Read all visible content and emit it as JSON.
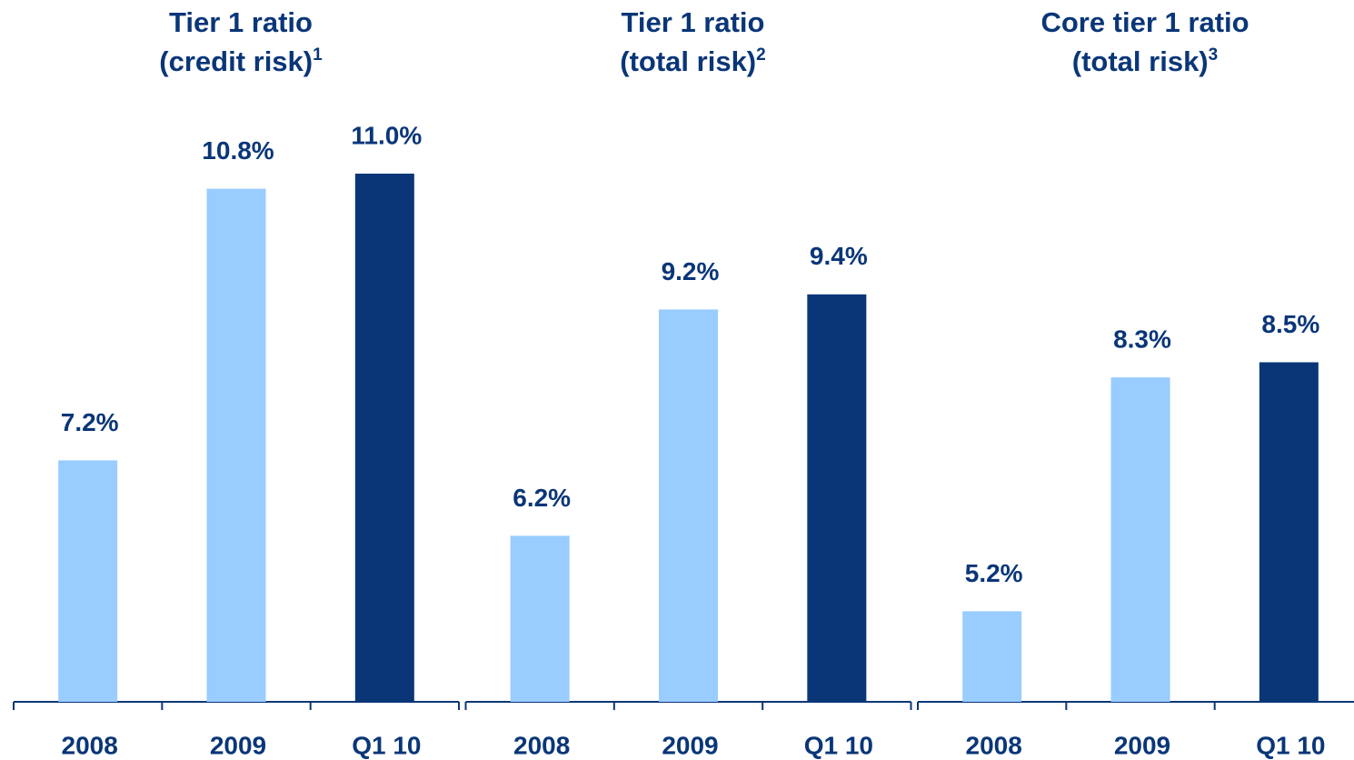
{
  "chart_data": [
    {
      "type": "bar",
      "title": "Tier 1 ratio",
      "subtitle": "(credit risk)",
      "footnote_marker": "1",
      "categories": [
        "2008",
        "2009",
        "Q1 10"
      ],
      "values": [
        7.2,
        10.8,
        11.0
      ],
      "value_labels": [
        "7.2%",
        "10.8%",
        "11.0%"
      ],
      "colors": [
        "#99ccff",
        "#99ccff",
        "#0a3678"
      ],
      "ylim": [
        4,
        12
      ]
    },
    {
      "type": "bar",
      "title": "Tier 1 ratio",
      "subtitle": "(total risk)",
      "footnote_marker": "2",
      "categories": [
        "2008",
        "2009",
        "Q1 10"
      ],
      "values": [
        6.2,
        9.2,
        9.4
      ],
      "value_labels": [
        "6.2%",
        "9.2%",
        "9.4%"
      ],
      "colors": [
        "#99ccff",
        "#99ccff",
        "#0a3678"
      ],
      "ylim": [
        4,
        12
      ]
    },
    {
      "type": "bar",
      "title": "Core tier 1 ratio",
      "subtitle": "(total risk)",
      "footnote_marker": "3",
      "categories": [
        "2008",
        "2009",
        "Q1 10"
      ],
      "values": [
        5.2,
        8.3,
        8.5
      ],
      "value_labels": [
        "5.2%",
        "8.3%",
        "8.5%"
      ],
      "colors": [
        "#99ccff",
        "#99ccff",
        "#0a3678"
      ],
      "ylim": [
        4,
        12
      ]
    }
  ]
}
